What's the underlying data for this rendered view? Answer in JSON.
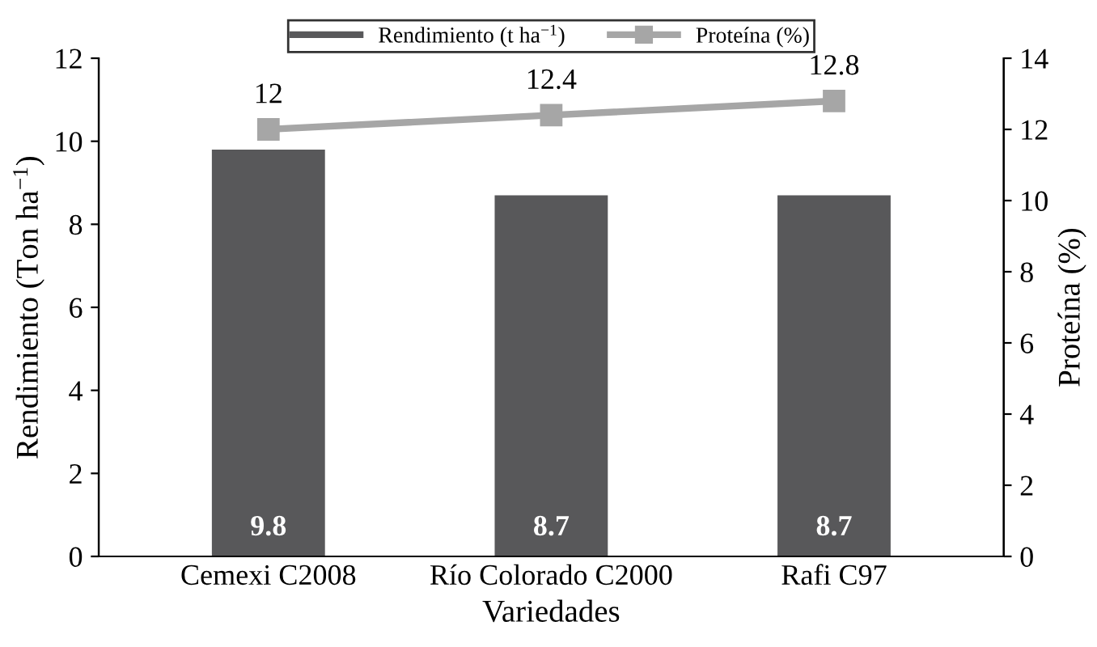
{
  "chart_data": {
    "type": "bar",
    "xlabel": "Variedades",
    "ylabel": "Rendimiento (Ton ha$^{−1}$)",
    "y2label": "Proteína (%)",
    "categories": [
      "Cemexi C2008",
      "Río Colorado C2000",
      "Rafi C97"
    ],
    "series": [
      {
        "name": "Rendimiento (t ha$^{−1}$)",
        "color": "#58585a",
        "values": [
          9.8,
          8.7,
          8.7
        ]
      },
      {
        "name": "Proteína (%)",
        "type": "line",
        "axis": "y2",
        "color": "#a6a6a6",
        "marker": "square",
        "values": [
          12,
          12.4,
          12.8
        ]
      }
    ],
    "ylim": [
      0,
      12
    ],
    "yticks": [
      0,
      2,
      4,
      6,
      8,
      10,
      12
    ],
    "y2lim": [
      0,
      14
    ],
    "y2ticks": [
      0,
      2,
      4,
      6,
      8,
      10,
      12,
      14
    ],
    "data_labels": true,
    "legend": "top",
    "grid": false
  }
}
